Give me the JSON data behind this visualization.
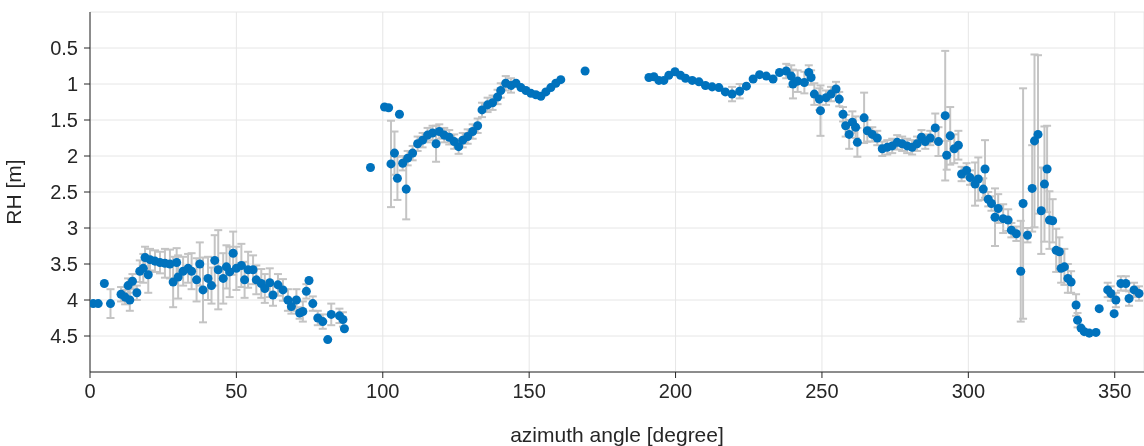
{
  "chart_data": {
    "type": "scatter",
    "xlabel": "azimuth angle [degree]",
    "ylabel": "RH [m]",
    "xlim": [
      0,
      360
    ],
    "xticks": [
      0,
      50,
      100,
      150,
      200,
      250,
      300,
      350
    ],
    "ylim": [
      5,
      0
    ],
    "yticks": [
      0.5,
      1,
      1.5,
      2,
      2.5,
      3,
      3.5,
      4,
      4.5
    ],
    "grid": true,
    "marker": "circle",
    "series": [
      {
        "color": "#0072bd",
        "x": [
          1.1,
          2.8,
          4.9,
          7,
          10.6,
          12,
          13,
          13.6,
          14.5,
          16,
          17,
          18.2,
          18.8,
          19.9,
          20.5,
          22.2,
          23.9,
          25.6,
          27.3,
          28.4,
          29.6,
          30.1,
          31.8,
          33.5,
          34.7,
          36.4,
          37.5,
          38.6,
          40.3,
          41.5,
          42.6,
          43.8,
          45.5,
          46.6,
          47.7,
          48.9,
          50,
          51.7,
          52.8,
          54,
          55.7,
          56.8,
          58.5,
          59.7,
          61.4,
          62.5,
          64.2,
          65.9,
          67.6,
          68.8,
          70.5,
          71.6,
          72.7,
          73.9,
          74.8,
          76.1,
          77.8,
          79.5,
          81.2,
          82.4,
          85.2,
          86.4,
          86.9,
          95.8,
          100.6,
          102,
          102.8,
          104,
          105,
          105.7,
          106.8,
          108,
          108.5,
          110.2,
          111.9,
          113.6,
          115.3,
          117,
          118.2,
          119.3,
          121,
          122.7,
          124.4,
          125.9,
          127.3,
          129,
          130.7,
          132.4,
          133.9,
          135.8,
          137.5,
          139.2,
          140.3,
          142,
          143.8,
          145.5,
          147.2,
          148.9,
          150.6,
          152.3,
          154,
          155.7,
          157.4,
          159.1,
          160.8,
          169.1,
          190.9,
          192.6,
          194.3,
          196,
          197.7,
          199.8,
          201.7,
          203.4,
          205.7,
          208,
          210.2,
          212.5,
          214.8,
          217,
          219.3,
          221.9,
          224.2,
          226.5,
          228.7,
          231,
          233.3,
          235.5,
          237.8,
          239.5,
          240.1,
          241.7,
          244,
          245.5,
          246.3,
          247.4,
          249.1,
          249.5,
          251.4,
          253.1,
          254.8,
          255.9,
          257.2,
          258.1,
          259.3,
          260.4,
          261.5,
          262.1,
          264.4,
          265.5,
          267.2,
          268.9,
          270.6,
          272.3,
          274,
          275.7,
          277.4,
          279.1,
          280.8,
          282.5,
          284,
          285.3,
          287,
          288.7,
          289.8,
          292.1,
          292.6,
          293.8,
          295.2,
          296.6,
          297.7,
          299.4,
          300.6,
          302.3,
          303.4,
          305.1,
          305.7,
          306.8,
          307.9,
          309.1,
          310.2,
          311.9,
          313.6,
          314.7,
          316.4,
          317.9,
          318.7,
          320.2,
          321.8,
          322.6,
          323.8,
          324.9,
          326,
          326.9,
          327.7,
          328.8,
          330,
          331.1,
          331.7,
          332.8,
          334,
          335.1,
          336.8,
          337.3,
          338.5,
          339.6,
          341.3,
          343.6,
          344.7,
          347.6,
          348.7,
          349.8,
          350.4,
          352.1,
          353.8,
          354.9,
          356.6,
          358.3
        ],
        "values": [
          4.05,
          4.05,
          3.77,
          4.05,
          3.92,
          3.96,
          3.8,
          4.0,
          3.74,
          3.9,
          3.6,
          3.56,
          3.41,
          3.65,
          3.44,
          3.46,
          3.48,
          3.49,
          3.5,
          3.75,
          3.48,
          3.68,
          3.6,
          3.56,
          3.6,
          3.72,
          3.5,
          3.86,
          3.7,
          3.8,
          3.45,
          3.58,
          3.7,
          3.54,
          3.61,
          3.35,
          3.56,
          3.52,
          3.72,
          3.58,
          3.58,
          3.72,
          3.77,
          3.84,
          3.76,
          3.93,
          3.79,
          3.86,
          4.0,
          4.09,
          4.0,
          4.18,
          4.16,
          3.88,
          3.73,
          4.05,
          4.25,
          4.3,
          4.55,
          4.2,
          4.22,
          4.27,
          4.4,
          2.16,
          1.32,
          1.33,
          2.11,
          1.96,
          2.31,
          1.42,
          2.1,
          2.46,
          2.03,
          1.96,
          1.83,
          1.78,
          1.71,
          1.68,
          1.83,
          1.66,
          1.71,
          1.74,
          1.8,
          1.87,
          1.78,
          1.73,
          1.66,
          1.58,
          1.36,
          1.29,
          1.26,
          1.18,
          1.09,
          0.99,
          1.02,
          0.99,
          1.05,
          1.09,
          1.13,
          1.15,
          1.17,
          1.11,
          1.05,
          0.99,
          0.94,
          0.82,
          0.91,
          0.9,
          0.95,
          0.95,
          0.88,
          0.83,
          0.88,
          0.92,
          0.95,
          0.97,
          1.02,
          1.04,
          1.05,
          1.11,
          1.14,
          1.1,
          1.03,
          0.93,
          0.87,
          0.89,
          0.93,
          0.84,
          0.82,
          0.89,
          1.0,
          0.96,
          0.98,
          0.84,
          0.91,
          1.14,
          1.21,
          1.37,
          1.19,
          1.14,
          1.07,
          1.21,
          1.42,
          1.58,
          1.7,
          1.53,
          1.6,
          1.81,
          1.47,
          1.65,
          1.7,
          1.75,
          1.9,
          1.88,
          1.86,
          1.81,
          1.83,
          1.86,
          1.88,
          1.83,
          1.74,
          1.8,
          1.75,
          1.61,
          1.8,
          1.44,
          1.99,
          1.72,
          1.9,
          1.85,
          2.25,
          2.2,
          2.3,
          2.39,
          2.32,
          2.46,
          2.18,
          2.6,
          2.66,
          2.85,
          2.73,
          2.87,
          2.89,
          3.03,
          3.08,
          3.6,
          2.66,
          3.1,
          2.45,
          1.79,
          1.7,
          2.76,
          2.39,
          2.18,
          2.89,
          2.9,
          3.31,
          3.33,
          3.56,
          3.54,
          3.7,
          3.75,
          4.07,
          4.28,
          4.39,
          4.44,
          4.46,
          4.45,
          4.12,
          3.86,
          3.91,
          4.19,
          4.0,
          3.77,
          3.77,
          3.98,
          3.86,
          3.91
        ],
        "errors": [
          null,
          null,
          null,
          0.2,
          0.1,
          0.1,
          0.1,
          0.15,
          0.1,
          0.1,
          0.15,
          0.2,
          0.15,
          0.25,
          0.15,
          0.15,
          0.15,
          0.2,
          0.2,
          0.35,
          0.2,
          0.3,
          0.2,
          0.2,
          0.25,
          0.3,
          0.3,
          0.45,
          0.3,
          0.25,
          0.35,
          0.55,
          0.35,
          0.3,
          0.35,
          0.3,
          0.3,
          0.3,
          0.25,
          0.25,
          0.2,
          0.2,
          0.2,
          0.2,
          0.2,
          0.15,
          0.15,
          0.15,
          0.15,
          0.1,
          0.15,
          0.08,
          0.14,
          0.1,
          null,
          0.1,
          0.1,
          0.1,
          null,
          0.15,
          0.1,
          0.1,
          null,
          null,
          null,
          null,
          0.6,
          0.3,
          0.3,
          null,
          0.1,
          0.42,
          0.1,
          0.1,
          0.1,
          0.1,
          0.1,
          0.1,
          0.25,
          0.1,
          0.1,
          0.1,
          0.1,
          0.1,
          0.1,
          0.1,
          0.1,
          0.1,
          0.1,
          0.1,
          0.1,
          0.1,
          0.1,
          0.1,
          0.1,
          null,
          null,
          null,
          null,
          null,
          null,
          null,
          null,
          null,
          null,
          null,
          null,
          null,
          null,
          null,
          null,
          null,
          null,
          null,
          null,
          null,
          null,
          null,
          null,
          null,
          0.1,
          0.1,
          null,
          null,
          null,
          null,
          null,
          null,
          0.1,
          0.15,
          0.2,
          0.15,
          0.15,
          0.1,
          0.1,
          0.15,
          0.15,
          0.35,
          0.1,
          0.1,
          0.1,
          0.1,
          0.1,
          0.15,
          0.2,
          0.15,
          0.15,
          0.2,
          0.35,
          0.15,
          0.1,
          0.1,
          0.1,
          0.1,
          0.1,
          0.1,
          0.1,
          0.1,
          0.1,
          0.1,
          0.1,
          0.1,
          0.1,
          0.2,
          0.2,
          0.9,
          0.2,
          0.4,
          0.2,
          0.2,
          0.1,
          0.1,
          0.1,
          0.3,
          0.3,
          0.15,
          0.4,
          0.1,
          0.1,
          0.4,
          0.2,
          0.2,
          0.15,
          0.1,
          0.1,
          0.7,
          1.6,
          0.1,
          0.6,
          1.2,
          1.1,
          0.6,
          0.8,
          0.6,
          0.4,
          0.3,
          0.3,
          0.2,
          0.2,
          0.25,
          0.2,
          0.15,
          0.15,
          0.1,
          null,
          null,
          null,
          null,
          null,
          0.1,
          0.1,
          null,
          0.1,
          0.1,
          0.1,
          0.1,
          0.1,
          0.1
        ]
      }
    ]
  }
}
